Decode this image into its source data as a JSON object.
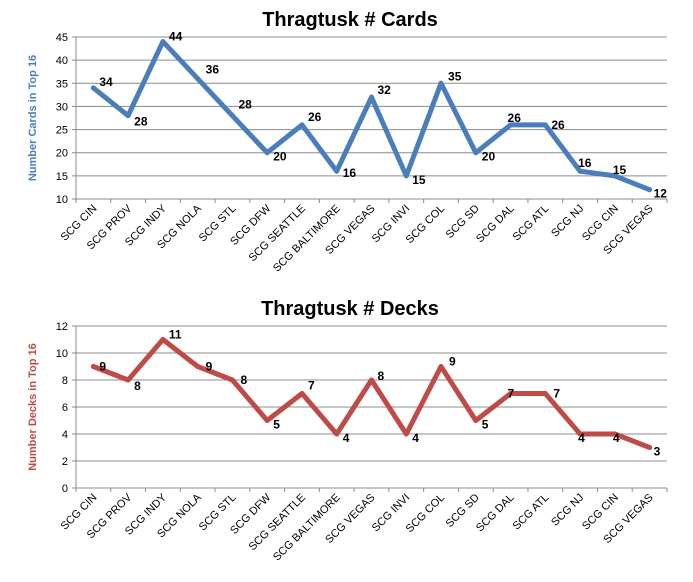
{
  "chart_data": [
    {
      "type": "line",
      "title": "Thragtusk # Cards",
      "xlabel": "",
      "ylabel": "Number Cards in Top 16",
      "ylim": [
        10,
        45
      ],
      "ytick_step": 5,
      "grid": true,
      "legend": "none",
      "color": "#4a7ebb",
      "categories": [
        "SCG CIN",
        "SCG PROV",
        "SCG INDY",
        "SCG NOLA",
        "SCG STL",
        "SCG DFW",
        "SCG SEATTLE",
        "SCG BALTIMORE",
        "SCG VEGAS",
        "SCG INVI",
        "SCG COL",
        "SCG SD",
        "SCG DAL",
        "SCG ATL",
        "SCG NJ",
        "SCG CIN",
        "SCG VEGAS"
      ],
      "values": [
        34,
        28,
        44,
        36,
        28,
        20,
        26,
        16,
        32,
        15,
        35,
        20,
        26,
        26,
        16,
        15,
        12
      ]
    },
    {
      "type": "line",
      "title": "Thragtusk # Decks",
      "xlabel": "",
      "ylabel": "Number Decks  in Top 16",
      "ylim": [
        0,
        12
      ],
      "ytick_step": 2,
      "grid": true,
      "legend": "none",
      "color": "#be4b48",
      "categories": [
        "SCG CIN",
        "SCG PROV",
        "SCG INDY",
        "SCG NOLA",
        "SCG STL",
        "SCG DFW",
        "SCG SEATTLE",
        "SCG BALTIMORE",
        "SCG VEGAS",
        "SCG INVI",
        "SCG COL",
        "SCG SD",
        "SCG DAL",
        "SCG ATL",
        "SCG NJ",
        "SCG CIN",
        "SCG VEGAS"
      ],
      "values": [
        9,
        8,
        11,
        9,
        8,
        5,
        7,
        4,
        8,
        4,
        9,
        5,
        7,
        7,
        4,
        4,
        3
      ]
    }
  ]
}
